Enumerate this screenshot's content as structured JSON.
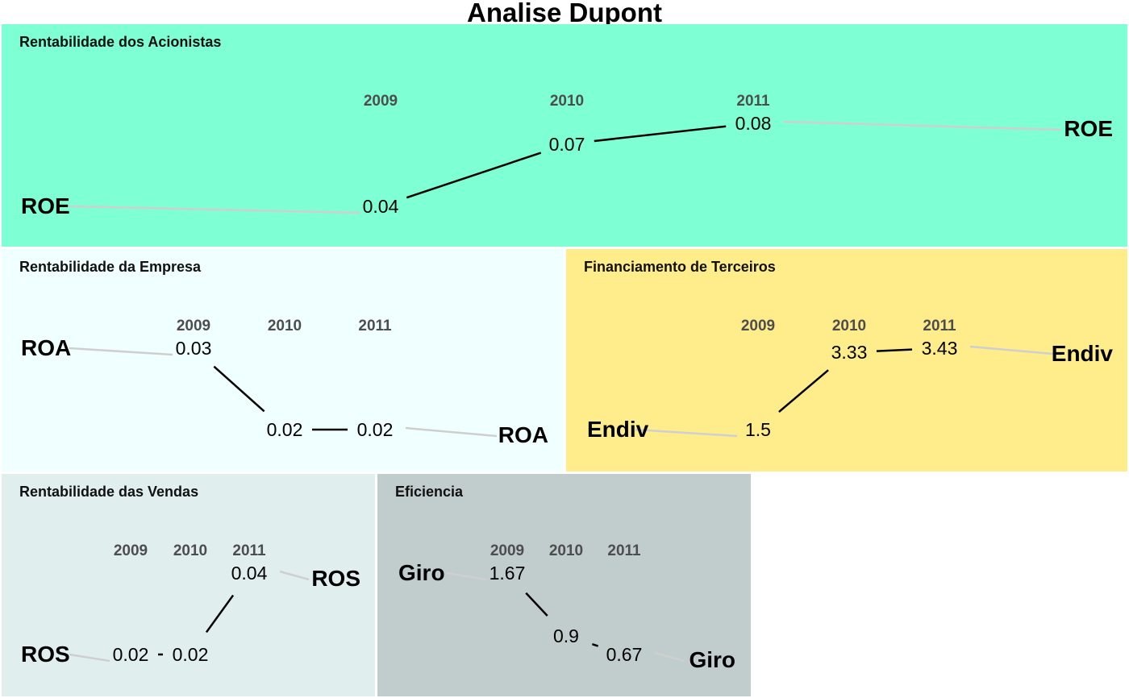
{
  "title": "Analise Dupont",
  "chart_data": [
    {
      "type": "line",
      "title": "Rentabilidade dos Acionistas",
      "metric": "ROE",
      "x": [
        "2009",
        "2010",
        "2011"
      ],
      "values": [
        0.04,
        0.07,
        0.08
      ],
      "value_labels": [
        "0.04",
        "0.07",
        "0.08"
      ],
      "ylim": [
        0.04,
        0.08
      ],
      "color": "#7fffd4"
    },
    {
      "type": "line",
      "title": "Rentabilidade da Empresa",
      "metric": "ROA",
      "x": [
        "2009",
        "2010",
        "2011"
      ],
      "values": [
        0.03,
        0.02,
        0.02
      ],
      "value_labels": [
        "0.03",
        "0.02",
        "0.02"
      ],
      "ylim": [
        0.02,
        0.03
      ],
      "color": "#f0ffff"
    },
    {
      "type": "line",
      "title": "Financiamento de Terceiros",
      "metric": "Endiv",
      "x": [
        "2009",
        "2010",
        "2011"
      ],
      "values": [
        1.5,
        3.33,
        3.43
      ],
      "value_labels": [
        "1.5",
        "3.33",
        "3.43"
      ],
      "ylim": [
        1.5,
        3.43
      ],
      "color": "#ffec8b"
    },
    {
      "type": "line",
      "title": "Rentabilidade das Vendas",
      "metric": "ROS",
      "x": [
        "2009",
        "2010",
        "2011"
      ],
      "values": [
        0.02,
        0.02,
        0.04
      ],
      "value_labels": [
        "0.02",
        "0.02",
        "0.04"
      ],
      "ylim": [
        0.02,
        0.04
      ],
      "color": "#e0eeee"
    },
    {
      "type": "line",
      "title": "Eficiencia",
      "metric": "Giro",
      "x": [
        "2009",
        "2010",
        "2011"
      ],
      "values": [
        1.67,
        0.9,
        0.67
      ],
      "value_labels": [
        "1.67",
        "0.9",
        "0.67"
      ],
      "ylim": [
        0.67,
        1.67
      ],
      "color": "#c1cdcd"
    }
  ]
}
